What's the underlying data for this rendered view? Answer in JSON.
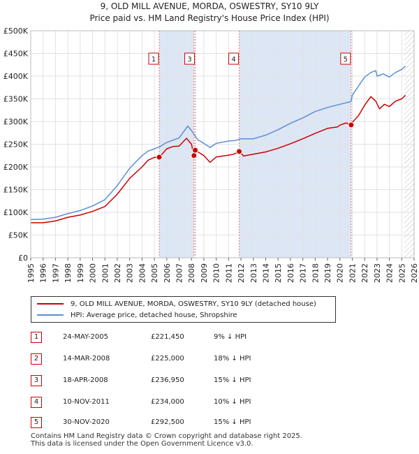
{
  "title_line1": "9, OLD MILL AVENUE, MORDA, OSWESTRY, SY10 9LY",
  "title_line2": "Price paid vs. HM Land Registry's House Price Index (HPI)",
  "colors": {
    "property": "#cc0000",
    "hpi": "#5b8fd4",
    "marker_line": "#e07a7a",
    "shade": "#dde6f5",
    "hatch": "#bbbbbb"
  },
  "chart_data": {
    "type": "line",
    "title": "Price paid vs. HM Land Registry's House Price Index (HPI)",
    "xlim": [
      1995,
      2026
    ],
    "ylim": [
      0,
      500000
    ],
    "y_ticks": [
      0,
      50000,
      100000,
      150000,
      200000,
      250000,
      300000,
      350000,
      400000,
      450000,
      500000
    ],
    "y_tick_labels": [
      "£0",
      "£50K",
      "£100K",
      "£150K",
      "£200K",
      "£250K",
      "£300K",
      "£350K",
      "£400K",
      "£450K",
      "£500K"
    ],
    "x_ticks": [
      "1995",
      "1996",
      "1997",
      "1998",
      "1999",
      "2000",
      "2001",
      "2002",
      "2003",
      "2004",
      "2005",
      "2006",
      "2007",
      "2008",
      "2009",
      "2010",
      "2011",
      "2012",
      "2013",
      "2014",
      "2015",
      "2016",
      "2017",
      "2018",
      "2019",
      "2020",
      "2021",
      "2022",
      "2023",
      "2024",
      "2025",
      "2026"
    ],
    "hatch_from": 2025.2,
    "series": [
      {
        "name": "9, OLD MILL AVENUE, MORDA, OSWESTRY, SY10 9LY (detached house)",
        "key": "property",
        "x": [
          1995,
          1996,
          1997,
          1998,
          1999,
          2000,
          2001,
          2002,
          2003,
          2004,
          2004.5,
          2005,
          2005.4,
          2006,
          2006.5,
          2007,
          2007.6,
          2008,
          2008.2,
          2008.3,
          2009,
          2009.5,
          2010,
          2011,
          2011.4,
          2011.9,
          2012.2,
          2013,
          2014,
          2015,
          2016,
          2017,
          2018,
          2019,
          2019.8,
          2020,
          2020.5,
          2020.9,
          2021,
          2021.5,
          2022,
          2022.5,
          2022.9,
          2023.2,
          2023.6,
          2024,
          2024.5,
          2025,
          2025.3
        ],
        "values": [
          77000,
          77000,
          81000,
          89000,
          94000,
          102000,
          113000,
          140000,
          175000,
          200000,
          215000,
          221000,
          221450,
          240000,
          245000,
          246000,
          263000,
          250000,
          225000,
          236950,
          225000,
          210000,
          222000,
          226000,
          228000,
          234000,
          224000,
          228000,
          233000,
          241000,
          251000,
          262000,
          274000,
          285000,
          288000,
          292000,
          297000,
          292500,
          298000,
          313000,
          336000,
          355000,
          345000,
          328000,
          338000,
          333000,
          345000,
          350000,
          358000
        ]
      },
      {
        "name": "HPI: Average price, detached house, Shropshire",
        "key": "hpi",
        "x": [
          1995,
          1996,
          1997,
          1998,
          1999,
          2000,
          2001,
          2002,
          2003,
          2004,
          2004.5,
          2005,
          2005.4,
          2006,
          2007,
          2007.7,
          2008,
          2008.5,
          2009,
          2009.5,
          2010,
          2011,
          2011.5,
          2012,
          2013,
          2014,
          2015,
          2016,
          2017,
          2018,
          2019,
          2020,
          2020.9,
          2021,
          2021.5,
          2022,
          2022.5,
          2022.9,
          2023,
          2023.5,
          2024,
          2024.5,
          2025,
          2025.3
        ],
        "values": [
          84000,
          85000,
          89000,
          97000,
          104000,
          114000,
          128000,
          159000,
          197000,
          225000,
          235000,
          240000,
          244000,
          254000,
          264000,
          290000,
          280000,
          260000,
          252000,
          243000,
          252000,
          257000,
          258000,
          262000,
          262000,
          270000,
          282000,
          296000,
          308000,
          322000,
          331000,
          338000,
          344000,
          358000,
          378000,
          398000,
          408000,
          412000,
          400000,
          405000,
          398000,
          408000,
          415000,
          422000
        ]
      }
    ],
    "sales": [
      {
        "num": "1",
        "year": 2005.39,
        "price": 221450,
        "date": "24-MAY-2005",
        "price_label": "£221,450",
        "hpi_label": "9% ↓ HPI"
      },
      {
        "num": "2",
        "year": 2008.2,
        "price": 225000,
        "date": "14-MAR-2008",
        "price_label": "£225,000",
        "hpi_label": "18% ↓ HPI"
      },
      {
        "num": "3",
        "year": 2008.3,
        "price": 236950,
        "date": "18-APR-2008",
        "price_label": "£236,950",
        "hpi_label": "15% ↓ HPI"
      },
      {
        "num": "4",
        "year": 2011.86,
        "price": 234000,
        "date": "10-NOV-2011",
        "price_label": "£234,000",
        "hpi_label": "10% ↓ HPI"
      },
      {
        "num": "5",
        "year": 2020.91,
        "price": 292500,
        "date": "30-NOV-2020",
        "price_label": "£292,500",
        "hpi_label": "15% ↓ HPI"
      }
    ],
    "shaded_ranges": [
      [
        2005.39,
        2008.2
      ],
      [
        2011.86,
        2020.91
      ]
    ],
    "label_boxes": [
      {
        "num": "1",
        "year": 2005.39
      },
      {
        "num": "3",
        "year": 2008.3
      },
      {
        "num": "4",
        "year": 2011.86
      },
      {
        "num": "5",
        "year": 2020.91
      }
    ]
  },
  "legend": {
    "property_label": "9, OLD MILL AVENUE, MORDA, OSWESTRY, SY10 9LY (detached house)",
    "hpi_label": "HPI: Average price, detached house, Shropshire"
  },
  "footer": {
    "line1": "Contains HM Land Registry data © Crown copyright and database right 2025.",
    "line2": "This data is licensed under the Open Government Licence v3.0."
  }
}
